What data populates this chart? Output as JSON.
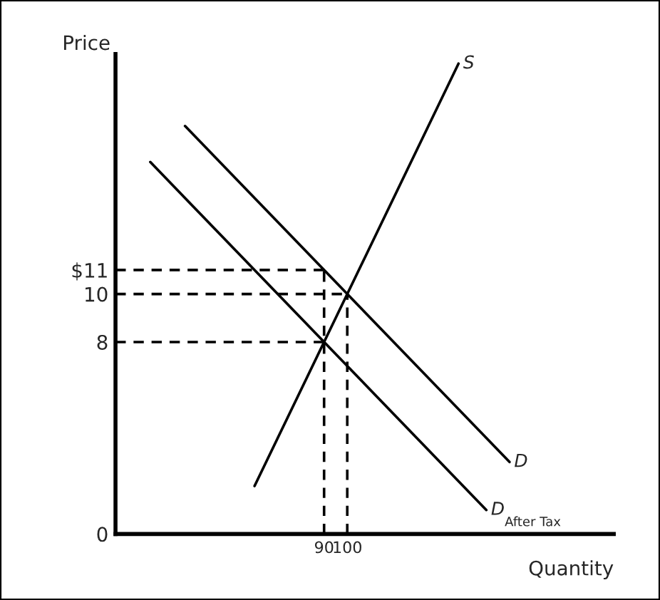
{
  "chart_data": {
    "type": "line",
    "xlabel": "Quantity",
    "ylabel": "Price",
    "xlim": [
      0,
      215
    ],
    "ylim": [
      0,
      20
    ],
    "xticks": [
      90,
      100
    ],
    "yticks": [
      0,
      8,
      10,
      {
        "value": 11,
        "label": "$11"
      }
    ],
    "grid": false,
    "legend": false,
    "marker": "none",
    "series": [
      {
        "name": "S",
        "color": "#000000",
        "line_style": "solid",
        "x": [
          60,
          148
        ],
        "values": [
          2,
          19.6
        ]
      },
      {
        "name": "D",
        "color": "#000000",
        "line_style": "solid",
        "x": [
          30,
          170
        ],
        "values": [
          17,
          3
        ]
      },
      {
        "name": "D$_{After Tax}$",
        "color": "#000000",
        "line_style": "solid",
        "x": [
          15,
          160
        ],
        "values": [
          15.5,
          1
        ]
      },
      {
        "color": "#000000",
        "line_style": "dashed",
        "x": [
          0,
          90
        ],
        "values": [
          11,
          11
        ]
      },
      {
        "color": "#000000",
        "line_style": "dashed",
        "x": [
          0,
          100
        ],
        "values": [
          10,
          10
        ]
      },
      {
        "color": "#000000",
        "line_style": "dashed",
        "x": [
          0,
          90
        ],
        "values": [
          8,
          8
        ]
      },
      {
        "color": "#000000",
        "line_style": "dashed",
        "x": [
          90,
          90
        ],
        "values": [
          0,
          11
        ]
      },
      {
        "color": "#000000",
        "line_style": "dashed",
        "x": [
          100,
          100
        ],
        "values": [
          0,
          10
        ]
      }
    ]
  }
}
